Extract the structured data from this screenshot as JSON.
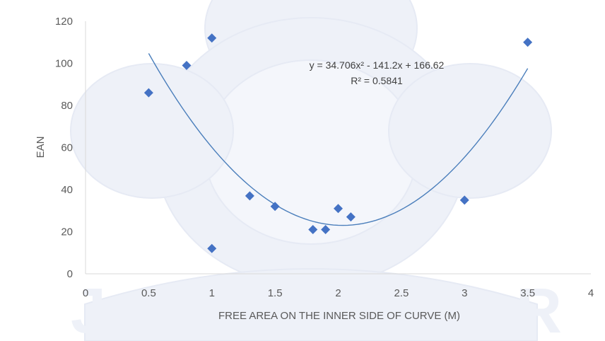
{
  "chart_data": {
    "type": "scatter",
    "xlabel": "FREE AREA ON THE INNER SIDE OF CURVE (M)",
    "ylabel": "EAN",
    "xlim": [
      0,
      4
    ],
    "ylim": [
      0,
      120
    ],
    "x_ticks": [
      "0",
      "0.5",
      "1",
      "1.5",
      "2",
      "2.5",
      "3",
      "3.5",
      "4"
    ],
    "y_ticks": [
      "0",
      "20",
      "40",
      "60",
      "80",
      "100",
      "120"
    ],
    "grid": false,
    "legend": "none",
    "points": [
      {
        "x": 0.5,
        "y": 86
      },
      {
        "x": 0.8,
        "y": 99
      },
      {
        "x": 1.0,
        "y": 112
      },
      {
        "x": 1.0,
        "y": 12
      },
      {
        "x": 1.3,
        "y": 37
      },
      {
        "x": 1.5,
        "y": 32
      },
      {
        "x": 1.8,
        "y": 21
      },
      {
        "x": 1.9,
        "y": 21
      },
      {
        "x": 2.0,
        "y": 31
      },
      {
        "x": 2.1,
        "y": 27
      },
      {
        "x": 3.0,
        "y": 35
      },
      {
        "x": 3.5,
        "y": 110
      }
    ],
    "trendline": {
      "type": "polynomial",
      "order": 2,
      "coefficients": [
        34.706,
        -141.2,
        166.62
      ],
      "x_range": [
        0.5,
        3.5
      ],
      "equation_text": "y = 34.706x² - 141.2x + 166.62",
      "r2_text": "R² = 0.5841"
    },
    "colors": {
      "marker": "#4472c4",
      "trendline": "#4a7ebb",
      "axis": "#d9d9d9",
      "text": "#595959"
    }
  }
}
